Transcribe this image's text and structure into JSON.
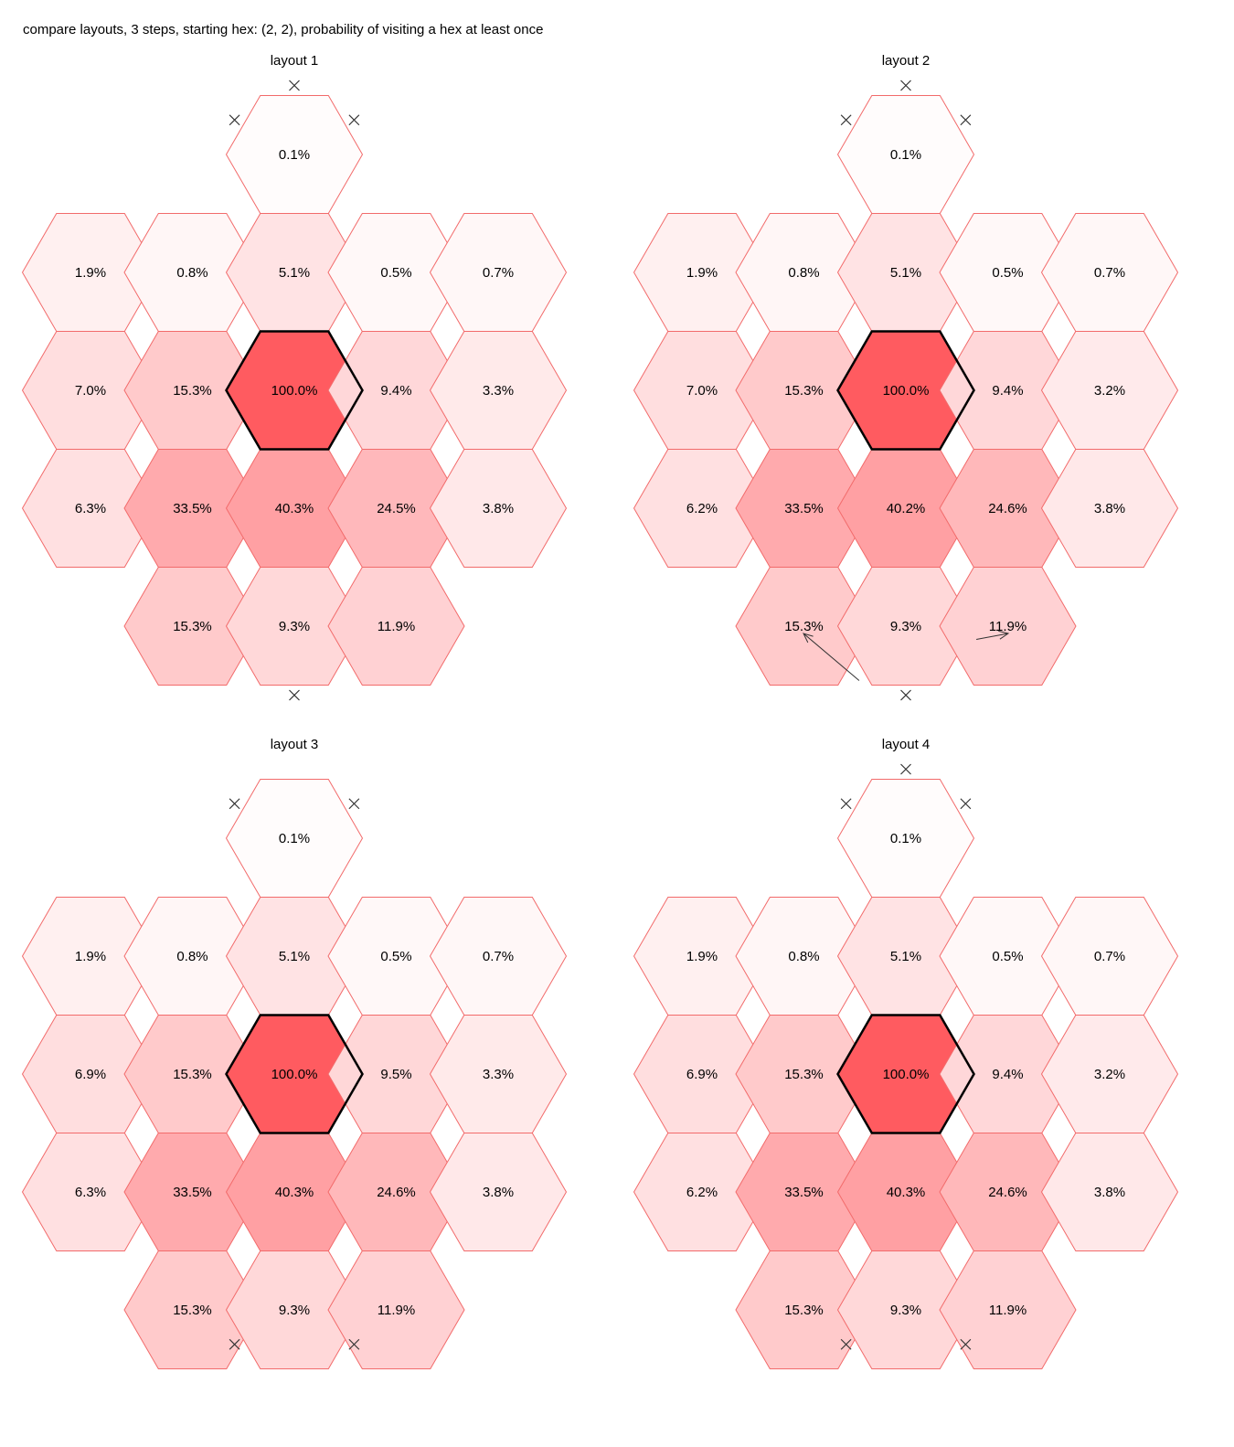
{
  "title": "compare layouts, 3 steps, starting hex: (2, 2), probability of visiting a hex at least once",
  "colors": {
    "hex_edge": "#f26b6b",
    "hex_fill_max": "#ff5b60",
    "start_edge": "#000000",
    "marker": "#333333"
  },
  "icons": {
    "blocked_marker": "x-mark-icon",
    "direction_arrow": "arrow-icon"
  },
  "panels": [
    {
      "name": "layout 1",
      "values": [
        [
          "1.9%",
          "7.0%",
          "6.3%"
        ],
        [
          "0.8%",
          "15.3%",
          "33.5%",
          "15.3%"
        ],
        [
          "0.1%",
          "5.1%",
          "100.0%",
          "40.3%",
          "9.3%"
        ],
        [
          "0.5%",
          "9.4%",
          "24.5%",
          "11.9%"
        ],
        [
          "0.7%",
          "3.3%",
          "3.8%"
        ]
      ],
      "blocked_edges": [
        [
          2,
          0,
          "N"
        ],
        [
          2,
          0,
          "NW"
        ],
        [
          2,
          0,
          "NE"
        ],
        [
          2,
          4,
          "S"
        ]
      ],
      "arrows": []
    },
    {
      "name": "layout 2",
      "values": [
        [
          "1.9%",
          "7.0%",
          "6.2%"
        ],
        [
          "0.8%",
          "15.3%",
          "33.5%",
          "15.3%"
        ],
        [
          "0.1%",
          "5.1%",
          "100.0%",
          "40.2%",
          "9.3%"
        ],
        [
          "0.5%",
          "9.4%",
          "24.6%",
          "11.9%"
        ],
        [
          "0.7%",
          "3.2%",
          "3.8%"
        ]
      ],
      "blocked_edges": [
        [
          2,
          0,
          "N"
        ],
        [
          2,
          0,
          "NW"
        ],
        [
          2,
          0,
          "NE"
        ],
        [
          2,
          4,
          "S"
        ]
      ],
      "arrows": [
        [
          2,
          4,
          "SW"
        ],
        [
          2,
          4,
          "SE"
        ]
      ]
    },
    {
      "name": "layout 3",
      "values": [
        [
          "1.9%",
          "6.9%",
          "6.3%"
        ],
        [
          "0.8%",
          "15.3%",
          "33.5%",
          "15.3%"
        ],
        [
          "0.1%",
          "5.1%",
          "100.0%",
          "40.3%",
          "9.3%"
        ],
        [
          "0.5%",
          "9.5%",
          "24.6%",
          "11.9%"
        ],
        [
          "0.7%",
          "3.3%",
          "3.8%"
        ]
      ],
      "blocked_edges": [
        [
          2,
          0,
          "NW"
        ],
        [
          2,
          0,
          "NE"
        ],
        [
          2,
          4,
          "SW"
        ],
        [
          2,
          4,
          "SE"
        ]
      ],
      "arrows": []
    },
    {
      "name": "layout 4",
      "values": [
        [
          "1.9%",
          "6.9%",
          "6.2%"
        ],
        [
          "0.8%",
          "15.3%",
          "33.5%",
          "15.3%"
        ],
        [
          "0.1%",
          "5.1%",
          "100.0%",
          "40.3%",
          "9.3%"
        ],
        [
          "0.5%",
          "9.4%",
          "24.6%",
          "11.9%"
        ],
        [
          "0.7%",
          "3.2%",
          "3.8%"
        ]
      ],
      "blocked_edges": [
        [
          2,
          0,
          "N"
        ],
        [
          2,
          0,
          "NW"
        ],
        [
          2,
          0,
          "NE"
        ],
        [
          2,
          4,
          "SW"
        ],
        [
          2,
          4,
          "SE"
        ]
      ],
      "arrows": []
    }
  ]
}
